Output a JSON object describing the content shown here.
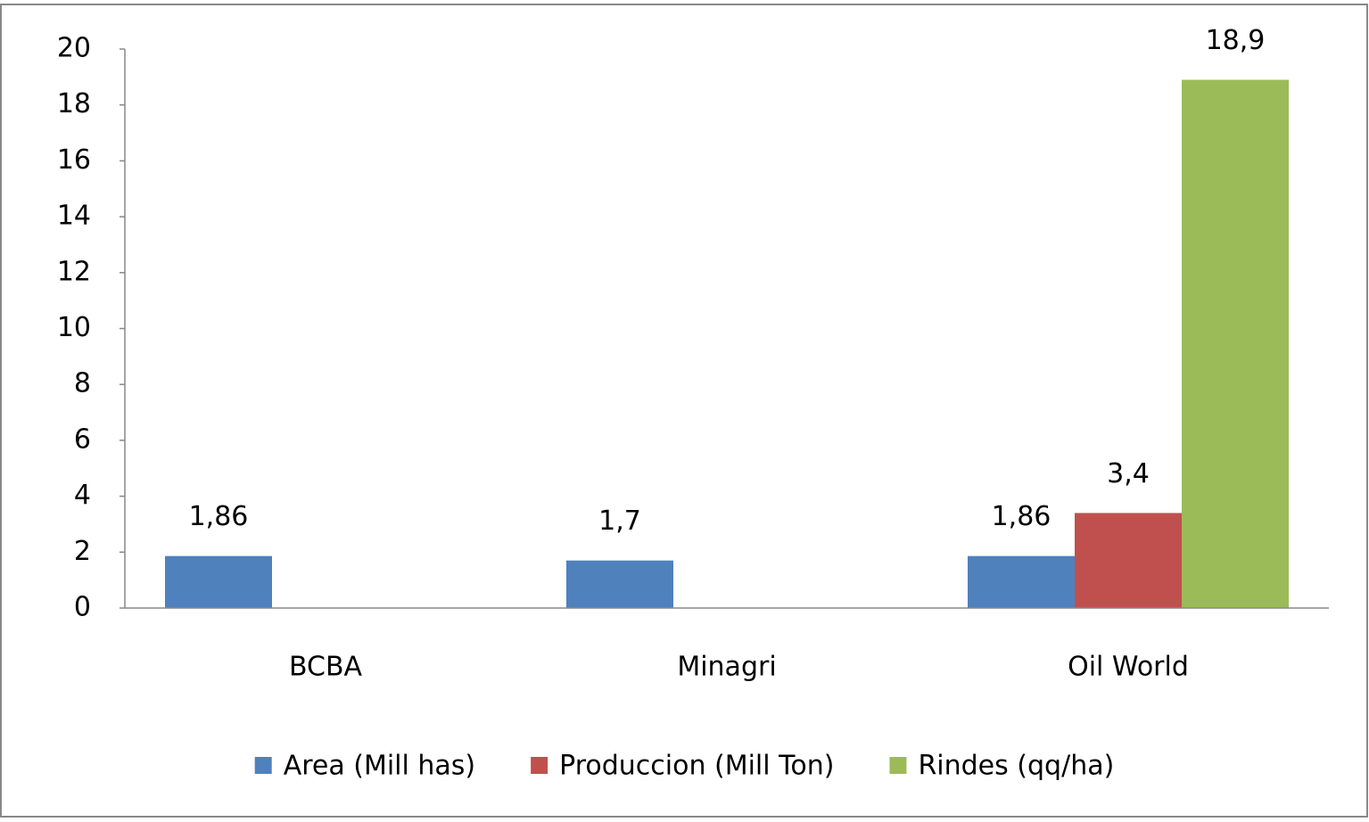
{
  "chart_data": {
    "type": "bar",
    "categories": [
      "BCBA",
      "Minagri",
      "Oil World"
    ],
    "series": [
      {
        "name": "Area (Mill has)",
        "color": "#4f81bd",
        "values": [
          1.86,
          1.7,
          1.86
        ],
        "value_labels": [
          "1,86",
          "1,7",
          "1,86"
        ]
      },
      {
        "name": "Produccion (Mill Ton)",
        "color": "#c0504d",
        "values": [
          null,
          null,
          3.4
        ],
        "value_labels": [
          null,
          null,
          "3,4"
        ]
      },
      {
        "name": "Rindes (qq/ha)",
        "color": "#9bbb59",
        "values": [
          null,
          null,
          18.9
        ],
        "value_labels": [
          null,
          null,
          "18,9"
        ]
      }
    ],
    "ylim": [
      0,
      20
    ],
    "yticks": [
      0,
      2,
      4,
      6,
      8,
      10,
      12,
      14,
      16,
      18,
      20
    ],
    "grid": false,
    "legend": "bottom"
  }
}
